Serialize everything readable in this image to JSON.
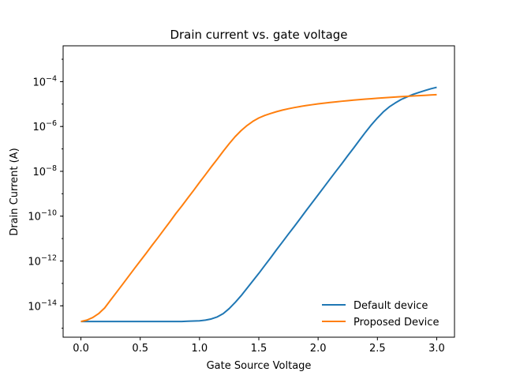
{
  "chart_data": {
    "type": "line",
    "title": "Drain current vs. gate voltage",
    "xlabel": "Gate Source Voltage",
    "ylabel": "Drain Current (A)",
    "y_scale": "log",
    "xlim": [
      -0.15,
      3.15
    ],
    "ylim": [
      3.98e-16,
      0.00398
    ],
    "xticks": [
      {
        "value": 0.0,
        "label": "0.0"
      },
      {
        "value": 0.5,
        "label": "0.5"
      },
      {
        "value": 1.0,
        "label": "1.0"
      },
      {
        "value": 1.5,
        "label": "1.5"
      },
      {
        "value": 2.0,
        "label": "2.0"
      },
      {
        "value": 2.5,
        "label": "2.5"
      },
      {
        "value": 3.0,
        "label": "3.0"
      }
    ],
    "yticks": [
      {
        "exp": -14,
        "base": "10",
        "sup": "−14"
      },
      {
        "exp": -12,
        "base": "10",
        "sup": "−12"
      },
      {
        "exp": -10,
        "base": "10",
        "sup": "−10"
      },
      {
        "exp": -8,
        "base": "10",
        "sup": "−8"
      },
      {
        "exp": -6,
        "base": "10",
        "sup": "−6"
      },
      {
        "exp": -4,
        "base": "10",
        "sup": "−4"
      }
    ],
    "grid": false,
    "legend_position": "lower-right",
    "x": [
      0.0,
      0.05,
      0.1,
      0.15,
      0.2,
      0.25,
      0.3,
      0.35,
      0.4,
      0.45,
      0.5,
      0.55,
      0.6,
      0.65,
      0.7,
      0.75,
      0.8,
      0.85,
      0.9,
      0.95,
      1.0,
      1.05,
      1.1,
      1.15,
      1.2,
      1.25,
      1.3,
      1.35,
      1.4,
      1.45,
      1.5,
      1.55,
      1.6,
      1.65,
      1.7,
      1.75,
      1.8,
      1.85,
      1.9,
      1.95,
      2.0,
      2.05,
      2.1,
      2.15,
      2.2,
      2.25,
      2.3,
      2.35,
      2.4,
      2.45,
      2.5,
      2.55,
      2.6,
      2.65,
      2.7,
      2.75,
      2.8,
      2.85,
      2.9,
      2.95,
      3.0
    ],
    "series": [
      {
        "name": "Default device",
        "color": "#1f77b4",
        "values": [
          2e-15,
          2e-15,
          2e-15,
          2e-15,
          2e-15,
          2e-15,
          2e-15,
          2e-15,
          2e-15,
          2e-15,
          2e-15,
          2e-15,
          2e-15,
          2e-15,
          2e-15,
          2e-15,
          2e-15,
          2e-15,
          2.05e-15,
          2.1e-15,
          2.15e-15,
          2.3e-15,
          2.6e-15,
          3.2e-15,
          4.5e-15,
          7.5e-15,
          1.4e-14,
          2.8e-14,
          6e-14,
          1.3e-13,
          2.8e-13,
          6.3e-13,
          1.4e-12,
          3.2e-12,
          7.1e-12,
          1.6e-11,
          3.5e-11,
          7.9e-11,
          1.8e-10,
          4e-10,
          8.9e-10,
          2e-09,
          4.5e-09,
          1e-08,
          2.2e-08,
          5e-08,
          1.1e-07,
          2.5e-07,
          5.6e-07,
          1.2e-06,
          2.4e-06,
          4.5e-06,
          7.5e-06,
          1.12e-05,
          1.6e-05,
          2.1e-05,
          2.7e-05,
          3.3e-05,
          4e-05,
          4.8e-05,
          5.6e-05
        ]
      },
      {
        "name": "Proposed Device",
        "color": "#ff7f0e",
        "values": [
          2e-15,
          2.3e-15,
          3e-15,
          4.5e-15,
          8e-15,
          1.8e-14,
          4e-14,
          8.9e-14,
          2e-13,
          4.5e-13,
          1e-12,
          2.2e-12,
          5e-12,
          1.1e-11,
          2.5e-11,
          5.6e-11,
          1.3e-10,
          2.8e-10,
          6.3e-10,
          1.4e-09,
          3.2e-09,
          7.1e-09,
          1.6e-08,
          3.5e-08,
          7.9e-08,
          1.7e-07,
          3.5e-07,
          6.5e-07,
          1.1e-06,
          1.7e-06,
          2.4e-06,
          3.1e-06,
          3.8e-06,
          4.6e-06,
          5.4e-06,
          6.2e-06,
          7e-06,
          7.8e-06,
          8.6e-06,
          9.4e-06,
          1.02e-05,
          1.1e-05,
          1.18e-05,
          1.26e-05,
          1.34e-05,
          1.42e-05,
          1.5e-05,
          1.58e-05,
          1.66e-05,
          1.74e-05,
          1.82e-05,
          1.9e-05,
          1.98e-05,
          2.06e-05,
          2.14e-05,
          2.22e-05,
          2.3e-05,
          2.38e-05,
          2.46e-05,
          2.54e-05,
          2.62e-05
        ]
      }
    ]
  }
}
